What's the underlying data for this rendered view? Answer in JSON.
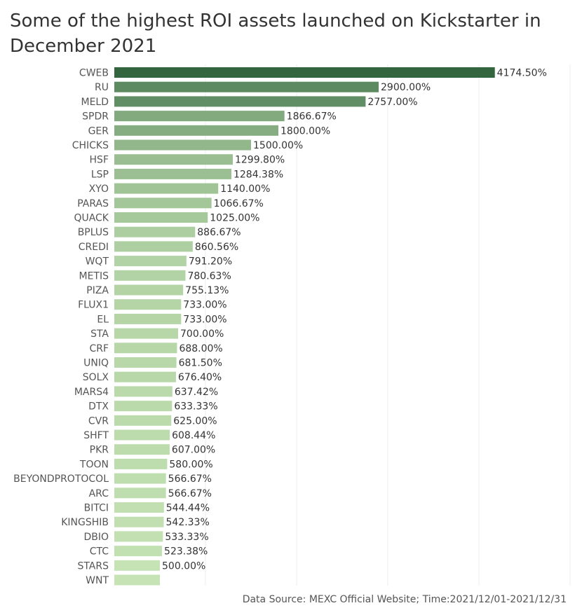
{
  "title": "Some of the highest ROI assets launched on Kickstarter in December 2021",
  "footer": "Data Source: MEXC Official Website; Time:2021/12/01-2021/12/31",
  "chart_data": {
    "type": "bar",
    "orientation": "horizontal",
    "title": "Some of the highest ROI assets launched on Kickstarter in December 2021",
    "categories": [
      "CWEB",
      "RU",
      "MELD",
      "SPDR",
      "GER",
      "CHICKS",
      "HSF",
      "LSP",
      "XYO",
      "PARAS",
      "QUACK",
      "BPLUS",
      "CREDI",
      "WQT",
      "METIS",
      "PIZA",
      "FLUX1",
      "EL",
      "STA",
      "CRF",
      "UNIQ",
      "SOLX",
      "MARS4",
      "DTX",
      "CVR",
      "SHFT",
      "PKR",
      "TOON",
      "BEYONDPROTOCOL",
      "ARC",
      "BITCI",
      "KINGSHIB",
      "DBIO",
      "CTC",
      "STARS",
      "WNT"
    ],
    "values": [
      4174.5,
      2900.0,
      2757.0,
      1866.67,
      1800.0,
      1500.0,
      1299.8,
      1284.38,
      1140.0,
      1066.67,
      1025.0,
      886.67,
      860.56,
      791.2,
      780.63,
      755.13,
      733.0,
      733.0,
      700.0,
      688.0,
      681.5,
      676.4,
      637.42,
      633.33,
      625.0,
      608.44,
      607.0,
      580.0,
      566.67,
      566.67,
      544.44,
      542.33,
      533.33,
      523.38,
      500.0,
      500.0
    ],
    "labels": [
      "4174.50%",
      "2900.00%",
      "2757.00%",
      "1866.67%",
      "1800.00%",
      "1500.00%",
      "1299.80%",
      "1284.38%",
      "1140.00%",
      "1066.67%",
      "1025.00%",
      "886.67%",
      "860.56%",
      "791.20%",
      "780.63%",
      "755.13%",
      "733.00%",
      "733.00%",
      "700.00%",
      "688.00%",
      "681.50%",
      "676.40%",
      "637.42%",
      "633.33%",
      "625.00%",
      "608.44%",
      "607.00%",
      "580.00%",
      "566.67%",
      "566.67%",
      "544.44%",
      "542.33%",
      "533.33%",
      "523.38%",
      "500.00%",
      ""
    ],
    "xlim": [
      0,
      5000
    ],
    "grid_x": [
      1000,
      2000,
      3000,
      4000,
      5000
    ],
    "grid": true,
    "color_scale": [
      "#c5e3b4",
      "#33663f"
    ]
  }
}
